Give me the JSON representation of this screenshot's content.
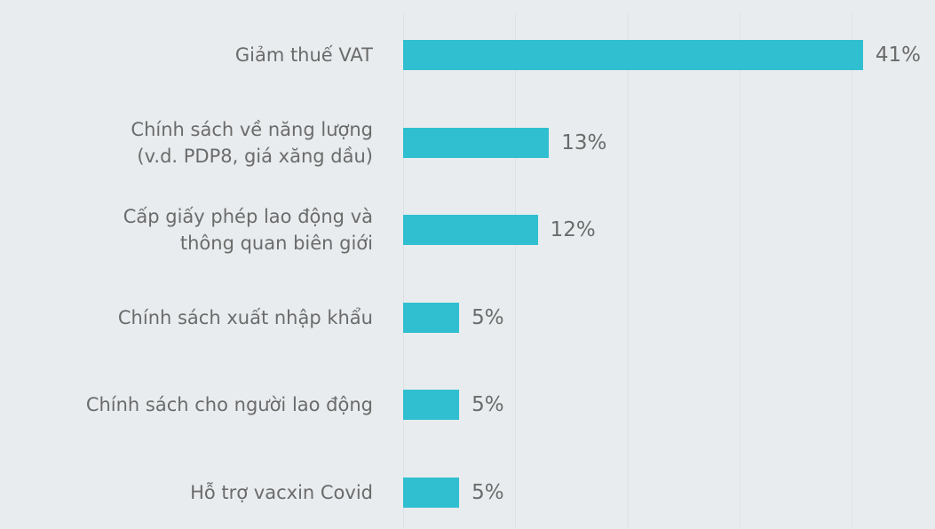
{
  "chart_data": {
    "type": "bar",
    "orientation": "horizontal",
    "categories": [
      "Giảm thuế VAT",
      "Chính sách về năng lượng\n(v.d. PDP8, giá xăng dầu)",
      "Cấp giấy phép lao động và\nthông quan biên giới",
      "Chính sách xuất nhập khẩu",
      "Chính sách cho người lao động",
      "Hỗ trợ vacxin Covid"
    ],
    "values": [
      41,
      13,
      12,
      5,
      5,
      5
    ],
    "value_labels": [
      "41%",
      "13%",
      "12%",
      "5%",
      "5%",
      "5%"
    ],
    "color": "#30bfd0",
    "xlim": [
      0,
      47.5
    ],
    "xticks": [
      0,
      10,
      20,
      30,
      40
    ],
    "grid": true
  }
}
